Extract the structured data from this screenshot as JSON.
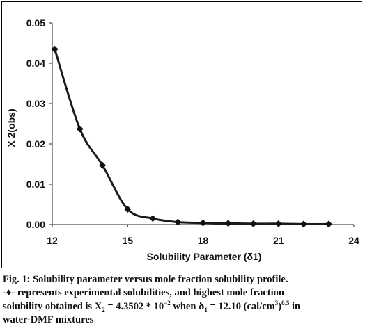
{
  "chart_data": {
    "type": "line",
    "xlabel": "Solubility Parameter (δ1)",
    "ylabel": "X 2(obs)",
    "xlim": [
      12,
      24
    ],
    "ylim": [
      0,
      0.05
    ],
    "x_ticks": [
      "12",
      "15",
      "18",
      "21",
      "24"
    ],
    "y_ticks": [
      "0.00",
      "0.01",
      "0.02",
      "0.03",
      "0.04",
      "0.05"
    ],
    "grid": false,
    "series": [
      {
        "x": [
          12.1,
          13.1,
          14.0,
          15.0,
          16.0,
          17.0,
          18.0,
          19.0,
          20.0,
          21.0,
          22.0,
          23.0
        ],
        "values": [
          0.0435,
          0.0237,
          0.0147,
          0.0038,
          0.0015,
          0.0006,
          0.0004,
          0.0003,
          0.0002,
          0.0002,
          0.0001,
          0.0001
        ]
      }
    ],
    "marker": "diamond",
    "line_color": "#1a1a1a"
  },
  "caption": {
    "line1": "Fig. 1: Solubility parameter versus mole fraction solubility profile.",
    "line2_marker": "-♦-",
    "line2": " represents experimental solubilities, and highest mole fraction",
    "line3_a": "solubility obtained is X",
    "line3_sub": "2",
    "line3_b": " = 4.3502 * 10",
    "line3_sup": "−2",
    "line3_c": " when ",
    "line3_delta": "δ",
    "line3_delta_sub": "1",
    "line3_d": " = 12.10 (cal/cm",
    "line3_sup2": "3",
    "line3_e": ")",
    "line3_sup3": "0.5",
    "line3_f": " in",
    "line4": "water-DMF mixtures"
  }
}
